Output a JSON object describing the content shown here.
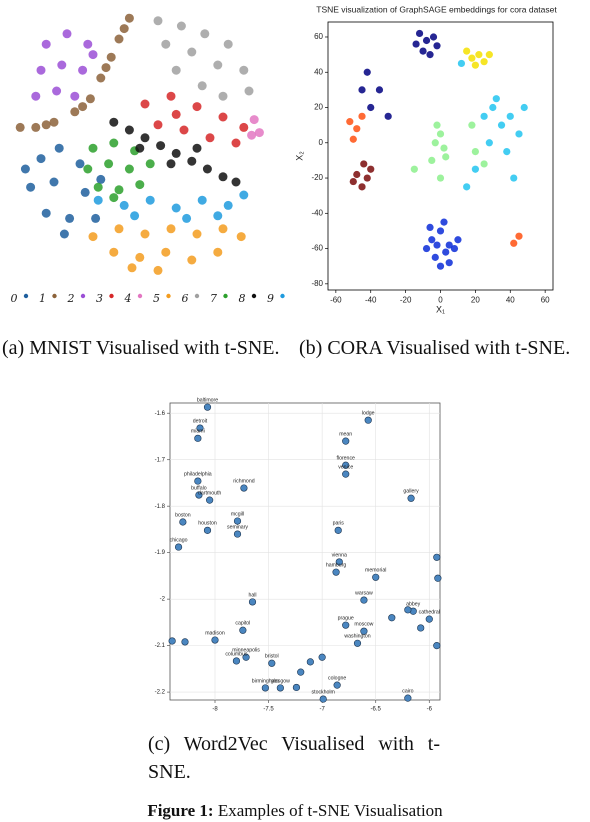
{
  "chart_data": [
    {
      "type": "scatter",
      "series": [
        {
          "name": "0",
          "color": "#1f5f9e",
          "x": [
            -40,
            -33,
            -25,
            -44,
            -35,
            -23,
            -38,
            -29,
            -19,
            -46,
            -31,
            -17
          ],
          "values": [
            -6,
            -2,
            -8,
            -17,
            -15,
            -19,
            -27,
            -29,
            -29,
            -10,
            -35,
            -14
          ]
        },
        {
          "name": "1",
          "color": "#8c6239",
          "x": [
            -6,
            -10,
            -13,
            -17,
            -21,
            -27,
            -35,
            -42,
            -48,
            -8,
            -15,
            -24,
            -38
          ],
          "values": [
            48,
            40,
            33,
            25,
            17,
            12,
            8,
            6,
            6,
            44,
            29,
            14,
            7
          ]
        },
        {
          "name": "2",
          "color": "#9b4fd6",
          "x": [
            -38,
            -30,
            -22,
            -40,
            -32,
            -24,
            -42,
            -34,
            -27,
            -20
          ],
          "values": [
            38,
            42,
            38,
            28,
            30,
            28,
            18,
            20,
            18,
            34
          ]
        },
        {
          "name": "3",
          "color": "#d62728",
          "x": [
            0,
            10,
            20,
            30,
            38,
            5,
            15,
            25,
            35,
            12
          ],
          "values": [
            15,
            18,
            14,
            10,
            6,
            7,
            5,
            2,
            0,
            11
          ]
        },
        {
          "name": "4",
          "color": "#e377c2",
          "x": [
            42,
            44,
            41
          ],
          "values": [
            9,
            4,
            3
          ]
        },
        {
          "name": "5",
          "color": "#f39c1e",
          "x": [
            -20,
            -10,
            0,
            10,
            20,
            30,
            37,
            -12,
            -2,
            8,
            18,
            28,
            5,
            -5
          ],
          "values": [
            -36,
            -33,
            -35,
            -33,
            -35,
            -33,
            -36,
            -42,
            -44,
            -42,
            -45,
            -42,
            -49,
            -48
          ]
        },
        {
          "name": "6",
          "color": "#a0a0a0",
          "x": [
            5,
            14,
            23,
            32,
            8,
            18,
            28,
            38,
            12,
            22,
            40,
            30
          ],
          "values": [
            47,
            45,
            42,
            38,
            38,
            35,
            30,
            28,
            28,
            22,
            20,
            18
          ]
        },
        {
          "name": "7",
          "color": "#2ca02c",
          "x": [
            -20,
            -12,
            -4,
            -22,
            -14,
            -6,
            2,
            -18,
            -10,
            -2,
            -12
          ],
          "values": [
            -2,
            0,
            -3,
            -10,
            -8,
            -10,
            -8,
            -17,
            -18,
            -16,
            -21
          ]
        },
        {
          "name": "8",
          "color": "#111111",
          "x": [
            -12,
            -6,
            0,
            6,
            12,
            18,
            24,
            30,
            35,
            -2,
            10,
            20
          ],
          "values": [
            8,
            5,
            2,
            -1,
            -4,
            -7,
            -10,
            -13,
            -15,
            -2,
            -8,
            -2
          ]
        },
        {
          "name": "9",
          "color": "#1f9bde",
          "x": [
            -18,
            -8,
            2,
            12,
            22,
            32,
            38,
            -4,
            16,
            28
          ],
          "values": [
            -22,
            -24,
            -22,
            -25,
            -22,
            -24,
            -20,
            -28,
            -29,
            -28
          ]
        }
      ]
    },
    {
      "type": "scatter",
      "title": "TSNE visualization of GraphSAGE embeddings for cora dataset",
      "x_label": "X₁",
      "y_label": "X₂",
      "xlim": [
        -64.5,
        64.5
      ],
      "ylim": [
        -83.5,
        68.5
      ],
      "xticks": [
        -60,
        -40,
        -20,
        0,
        20,
        40,
        60
      ],
      "yticks": [
        -80,
        -60,
        -40,
        -20,
        0,
        20,
        40,
        60
      ],
      "series": [
        {
          "color": "#000080",
          "x": [
            -12,
            -8,
            -4,
            -10,
            -6,
            -2,
            -14,
            -40,
            -35,
            -42,
            -30,
            -45
          ],
          "values": [
            62,
            58,
            60,
            52,
            50,
            55,
            56,
            20,
            30,
            40,
            15,
            30
          ]
        },
        {
          "color": "#0a2bd8",
          "x": [
            -5,
            0,
            5,
            -3,
            3,
            8,
            -8,
            0,
            10,
            -2,
            5,
            -6,
            2
          ],
          "values": [
            -55,
            -50,
            -58,
            -65,
            -62,
            -60,
            -60,
            -70,
            -55,
            -58,
            -68,
            -48,
            -45
          ]
        },
        {
          "color": "#22c4f0",
          "x": [
            25,
            30,
            35,
            40,
            45,
            28,
            38,
            20,
            42,
            48,
            15,
            12,
            32
          ],
          "values": [
            15,
            20,
            10,
            15,
            5,
            0,
            -5,
            -15,
            -20,
            20,
            -25,
            45,
            25
          ]
        },
        {
          "color": "#8cf08c",
          "x": [
            0,
            -3,
            2,
            -5,
            0,
            3,
            -2,
            20,
            25,
            18,
            -15
          ],
          "values": [
            5,
            0,
            -3,
            -10,
            -20,
            -8,
            10,
            -5,
            -12,
            10,
            -15
          ]
        },
        {
          "color": "#f5e000",
          "x": [
            18,
            22,
            25,
            15,
            20,
            28
          ],
          "values": [
            48,
            50,
            46,
            52,
            44,
            50
          ]
        },
        {
          "color": "#ff5010",
          "x": [
            -48,
            -52,
            -45,
            -50,
            42,
            45
          ],
          "values": [
            8,
            12,
            15,
            2,
            -57,
            -53
          ]
        },
        {
          "color": "#7a0a0a",
          "x": [
            -48,
            -42,
            -45,
            -40,
            -50,
            -44
          ],
          "values": [
            -18,
            -20,
            -25,
            -15,
            -22,
            -12
          ]
        }
      ]
    },
    {
      "type": "scatter",
      "grid": true,
      "color": "#4a86c0",
      "xlim": [
        -8.42,
        -5.9
      ],
      "ylim": [
        -2.217,
        -1.578
      ],
      "xticks": [
        -8,
        -7.5,
        -7,
        -6.5,
        -6
      ],
      "yticks": [
        -1.6,
        -1.7,
        -1.8,
        -1.9,
        -2,
        -2.1,
        -2.2
      ],
      "labels": [
        "baltimore",
        "detroit",
        "miami",
        "philadelphia",
        "buffalo",
        "dartmouth",
        "richmond",
        "boston",
        "houston",
        "mcgill",
        "seminary",
        "chicago",
        "hall",
        "capitol",
        "madison",
        "minneapolis",
        "columbus",
        "bristol",
        "birmingham",
        "glasgow",
        "lodge",
        "mean",
        "florence",
        "venice",
        "paris",
        "vienna",
        "hamburg",
        "memorial",
        "gallery",
        "warsaw",
        "prague",
        "moscow",
        "washington",
        "cologne",
        "stockholm",
        "cairo",
        "abbey",
        "cathedral",
        null,
        null,
        null,
        null,
        null,
        null,
        null,
        null,
        null,
        null,
        null,
        null
      ],
      "x": [
        -8.07,
        -8.14,
        -8.16,
        -8.16,
        -8.15,
        -8.05,
        -7.73,
        -8.3,
        -8.07,
        -7.79,
        -7.79,
        -8.34,
        -7.65,
        -7.74,
        -8.0,
        -7.71,
        -7.8,
        -7.47,
        -7.53,
        -7.39,
        -6.57,
        -6.78,
        -6.78,
        -6.78,
        -6.85,
        -6.84,
        -6.87,
        -6.5,
        -6.17,
        -6.61,
        -6.78,
        -6.61,
        -6.67,
        -6.86,
        -6.99,
        -6.2,
        -6.15,
        -6.0,
        -8.4,
        -8.28,
        -5.93,
        -5.92,
        -5.93,
        -7.11,
        -7.2,
        -7.0,
        -7.24,
        -6.35,
        -6.2,
        -6.08
      ],
      "values": [
        -1.587,
        -1.632,
        -1.654,
        -1.746,
        -1.776,
        -1.787,
        -1.761,
        -1.834,
        -1.852,
        -1.832,
        -1.86,
        -1.888,
        -2.006,
        -2.067,
        -2.088,
        -2.125,
        -2.133,
        -2.138,
        -2.191,
        -2.191,
        -1.615,
        -1.66,
        -1.712,
        -1.731,
        -1.852,
        -1.92,
        -1.942,
        -1.953,
        -1.783,
        -2.002,
        -2.056,
        -2.069,
        -2.095,
        -2.185,
        -2.215,
        -2.213,
        -2.026,
        -2.043,
        -2.09,
        -2.092,
        -1.91,
        -1.955,
        -2.1,
        -2.135,
        -2.157,
        -2.125,
        -2.19,
        -2.04,
        -2.023,
        -2.062
      ]
    }
  ],
  "captions": [
    "(a) MNIST Visualised with t-SNE.",
    "(b) CORA Visualised with t-SNE.",
    "(c) Word2Vec Visualised with t-SNE."
  ],
  "figure": {
    "label": "Figure 1:",
    "text": "Examples of t-SNE Visualisation"
  }
}
